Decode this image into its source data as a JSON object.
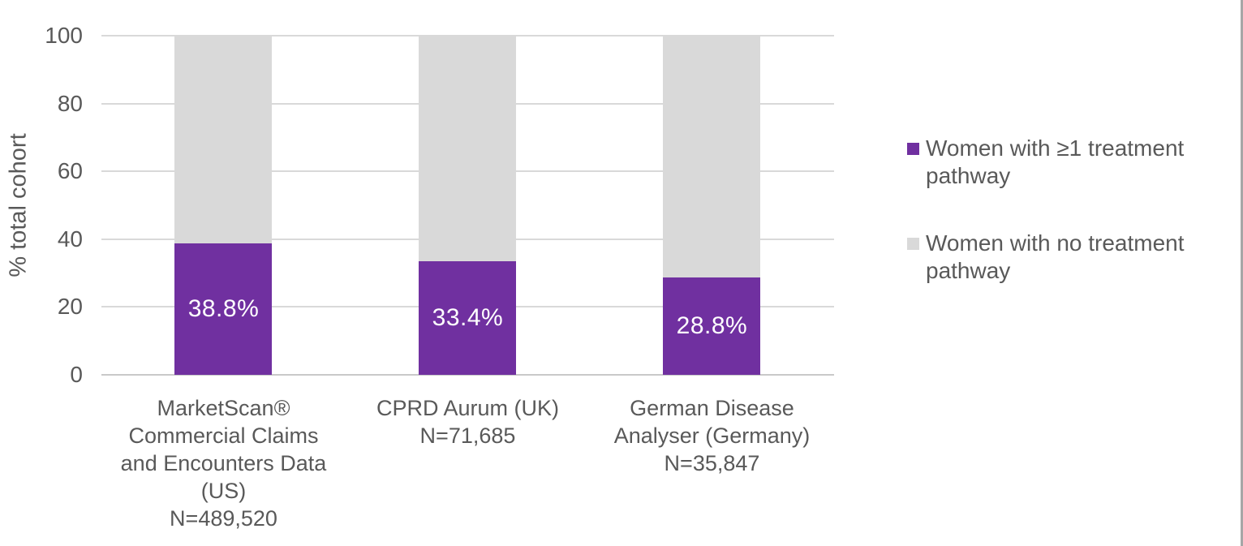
{
  "figure": {
    "background": "#ffffff",
    "right_border_color": "#a6a6a6"
  },
  "chart_data": {
    "type": "bar",
    "stacked": true,
    "orientation": "vertical",
    "title": "",
    "xlabel": "",
    "ylabel": "% total cohort",
    "ylim": [
      0,
      100
    ],
    "yticks": [
      0,
      20,
      40,
      60,
      80,
      100
    ],
    "grid": "horizontal",
    "gridline_color": "#d9d9d9",
    "axis_line_color": "#c9c9c9",
    "text_color": "#595959",
    "legend_position": "right",
    "categories": [
      "MarketScan®\nCommercial Claims\nand Encounters Data\n(US)\nN=489,520",
      "CPRD Aurum (UK)\nN=71,685",
      "German Disease\nAnalyser (Germany)\nN=35,847"
    ],
    "series": [
      {
        "key": "ge1-treatment-pathway",
        "name": "Women with ≥1 treatment pathway",
        "color": "#7030a0",
        "values": [
          38.8,
          33.4,
          28.8
        ],
        "data_labels": [
          "38.8%",
          "33.4%",
          "28.8%"
        ],
        "data_label_color": "#ffffff"
      },
      {
        "key": "no-treatment-pathway",
        "name": "Women with no treatment pathway",
        "color": "#d9d9d9",
        "values": [
          61.2,
          66.6,
          71.2
        ],
        "data_labels": [],
        "data_label_color": "#ffffff"
      }
    ]
  }
}
